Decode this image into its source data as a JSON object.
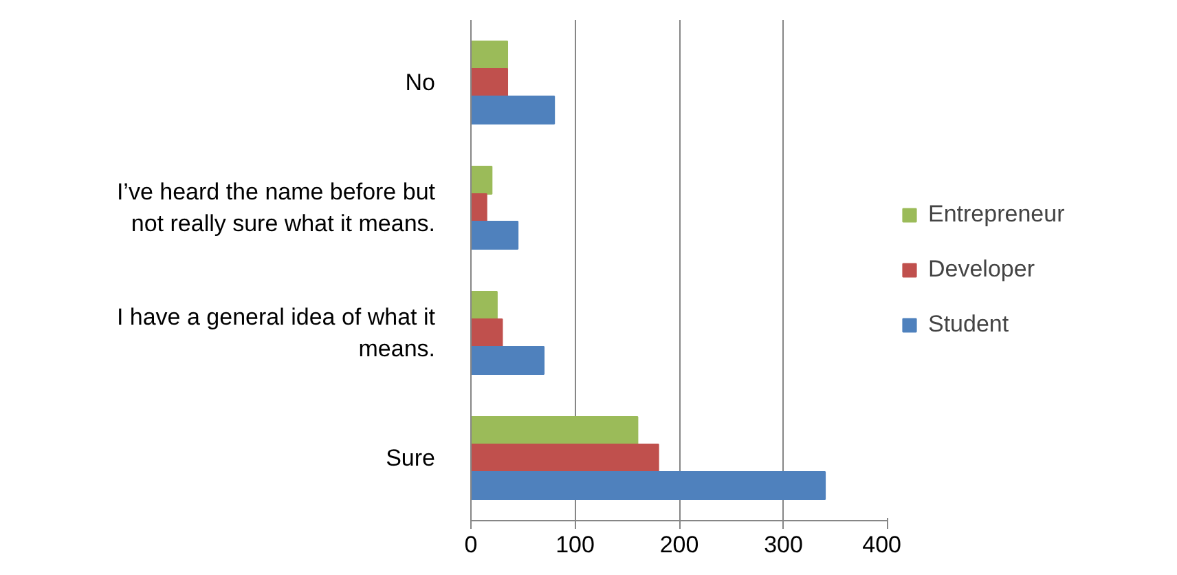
{
  "chart_data": {
    "type": "bar",
    "orientation": "horizontal",
    "categories": [
      "No",
      "I’ve heard the name before but not really sure what it means.",
      "I have a general idea of what it means.",
      "Sure"
    ],
    "series": [
      {
        "name": "Entrepreneur",
        "color": "#9bbb59",
        "values": [
          35,
          20,
          25,
          160
        ]
      },
      {
        "name": "Developer",
        "color": "#c0504d",
        "values": [
          35,
          15,
          30,
          180
        ]
      },
      {
        "name": "Student",
        "color": "#4f81bd",
        "values": [
          80,
          45,
          70,
          340
        ]
      }
    ],
    "xlim": [
      0,
      400
    ],
    "xticks": [
      0,
      100,
      200,
      300,
      400
    ],
    "grid": "x",
    "legend": "right"
  }
}
